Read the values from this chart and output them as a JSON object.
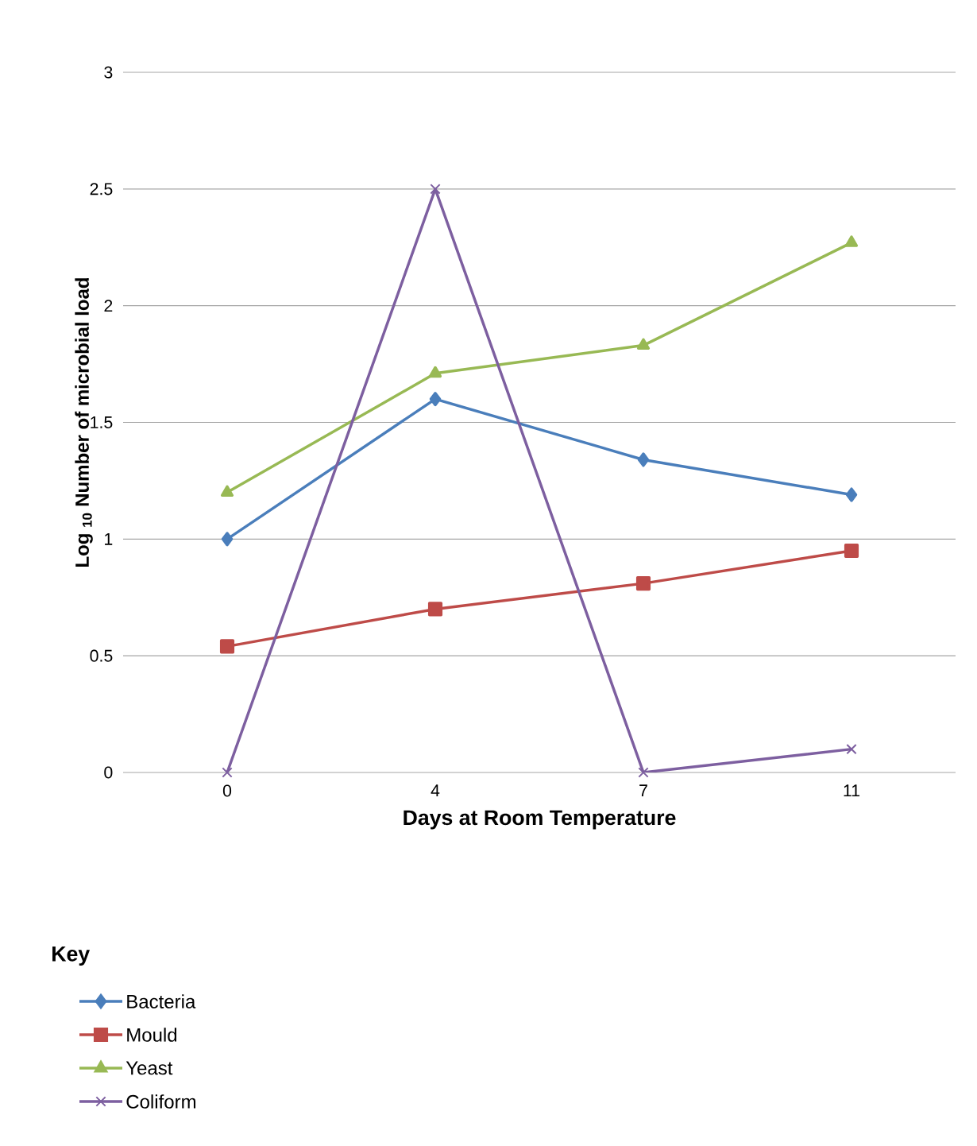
{
  "chart_data": {
    "type": "line",
    "xlabel": "Days at Room Temperature",
    "ylabel": "Log $_{10}$ Number of microbial load",
    "categories": [
      "0",
      "4",
      "7",
      "11"
    ],
    "series": [
      {
        "name": "Bacteria",
        "color": "#4a7ebb",
        "marker": "diamond",
        "values": [
          1.0,
          1.6,
          1.34,
          1.19
        ]
      },
      {
        "name": "Mould",
        "color": "#be4b48",
        "marker": "square",
        "values": [
          0.54,
          0.7,
          0.81,
          0.95
        ]
      },
      {
        "name": "Yeast",
        "color": "#98b954",
        "marker": "triangle",
        "values": [
          1.2,
          1.71,
          1.83,
          2.27
        ]
      },
      {
        "name": "Coliform",
        "color": "#7d5fa0",
        "marker": "cross",
        "values": [
          0,
          2.5,
          0,
          0.1
        ]
      }
    ],
    "ylim": [
      0,
      3
    ],
    "yticks": [
      0,
      0.5,
      1,
      1.5,
      2,
      2.5,
      3
    ],
    "grid": "y",
    "legend": "bottom left",
    "legend_title": "Key"
  }
}
